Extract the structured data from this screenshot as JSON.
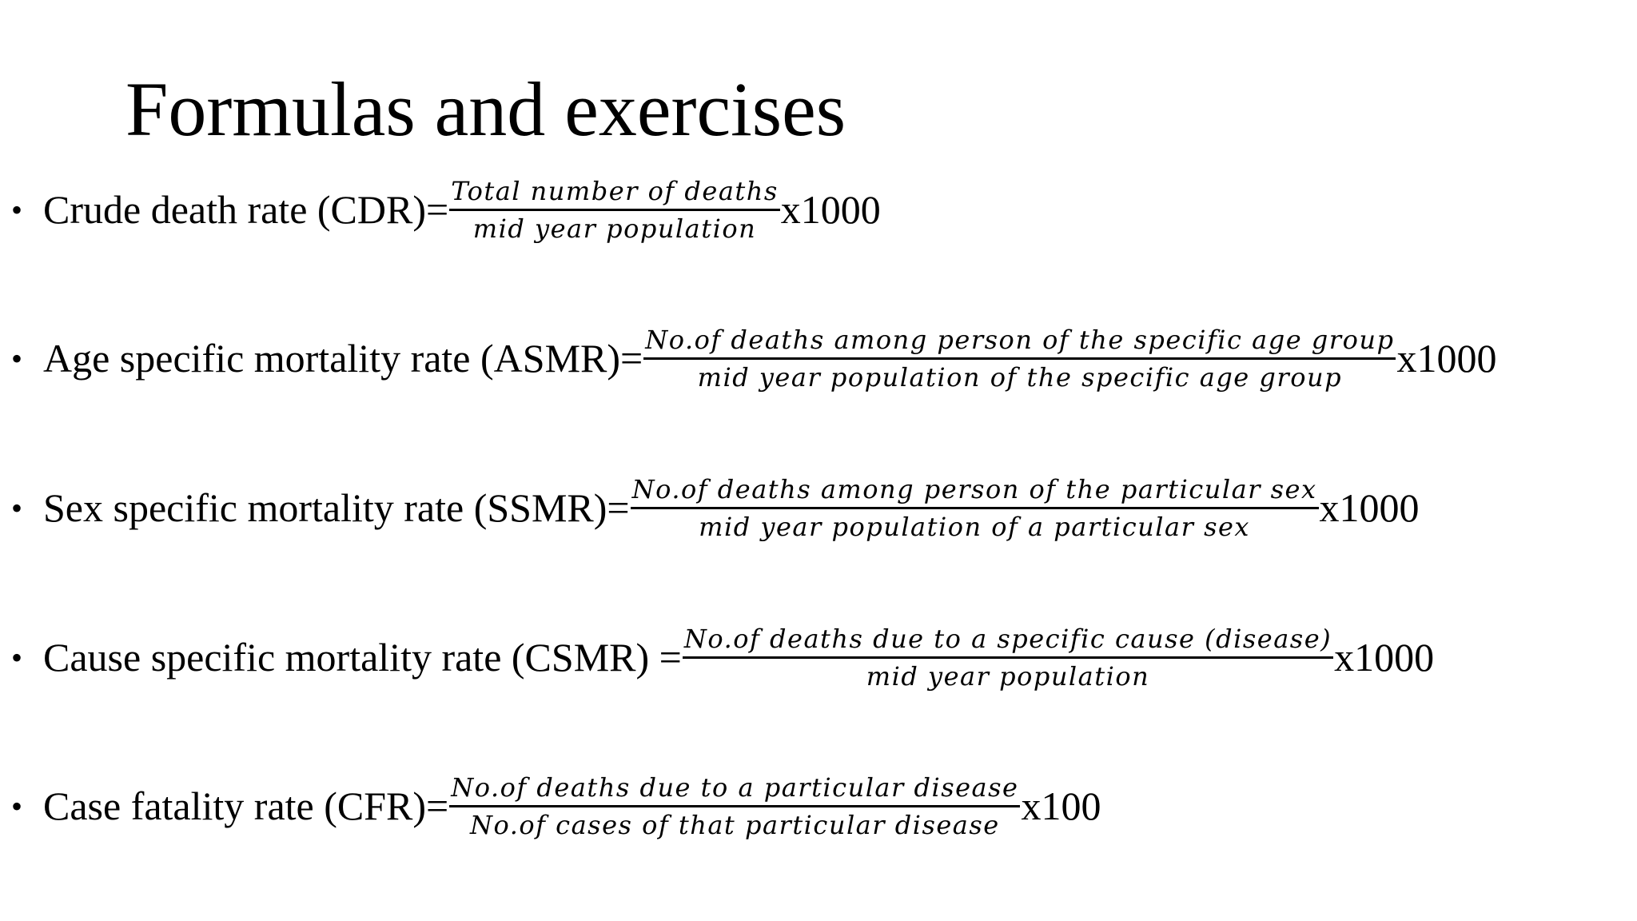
{
  "slide": {
    "title": "Formulas and exercises",
    "bullet": "•",
    "formulas": [
      {
        "label": "Crude death rate (CDR)=",
        "numerator": "Total number of deaths",
        "denominator": "mid year population",
        "multiplier": "x1000"
      },
      {
        "label": "Age specific mortality rate (ASMR)=",
        "numerator": "No.of deaths among person of the specific age group",
        "denominator": "mid year population of the specific age group",
        "multiplier": "x1000"
      },
      {
        "label": "Sex specific mortality rate (SSMR)=",
        "numerator": "No.of deaths among person of the particular sex",
        "denominator": "mid year population of a particular sex",
        "multiplier": "x1000"
      },
      {
        "label": "Cause specific mortality rate (CSMR) =",
        "numerator": "No.of deaths due to a specific cause (disease)",
        "denominator": "mid year population",
        "multiplier": "x1000"
      },
      {
        "label": "Case fatality rate (CFR)=",
        "numerator": "No.of deaths due to a particular disease",
        "denominator": "No.of cases of that particular disease",
        "multiplier": "x100"
      }
    ]
  }
}
